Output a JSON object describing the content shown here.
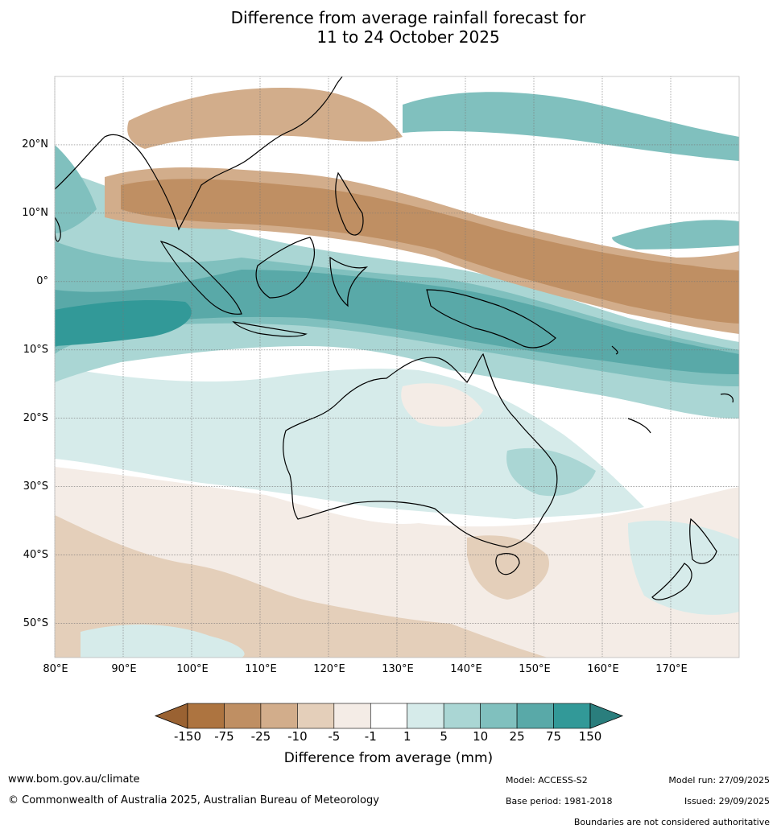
{
  "title": {
    "line1": "Difference from average rainfall forecast for",
    "line2": "11 to 24 October 2025"
  },
  "map": {
    "extent": {
      "lon_min": 80,
      "lon_max": 180,
      "lat_min": -55,
      "lat_max": 30
    },
    "lat_labels": [
      "20°N",
      "10°N",
      "0°",
      "10°S",
      "20°S",
      "30°S",
      "40°S",
      "50°S"
    ],
    "lat_values": [
      20,
      10,
      0,
      -10,
      -20,
      -30,
      -40,
      -50
    ],
    "lon_labels": [
      "80°E",
      "90°E",
      "100°E",
      "110°E",
      "120°E",
      "130°E",
      "140°E",
      "150°E",
      "160°E",
      "170°E"
    ],
    "lon_values": [
      80,
      90,
      100,
      110,
      120,
      130,
      140,
      150,
      160,
      170
    ]
  },
  "colorbar": {
    "title": "Difference from average (mm)",
    "ticks": [
      "-150",
      "-75",
      "-25",
      "-10",
      "-5",
      "-1",
      "1",
      "5",
      "10",
      "25",
      "75",
      "150"
    ],
    "colors": [
      "#9a6232",
      "#ad7440",
      "#bf8f63",
      "#d2ad8b",
      "#e4cfba",
      "#f4ece6",
      "#ffffff",
      "#d6ebea",
      "#aad6d4",
      "#80c0be",
      "#59a9a8",
      "#329998",
      "#2a7e7d"
    ]
  },
  "footer": {
    "website": "www.bom.gov.au/climate",
    "copyright": "© Commonwealth of Australia 2025, Australian Bureau of Meteorology",
    "model": "Model: ACCESS-S2",
    "base_period": "Base period: 1981-2018",
    "model_run": "Model run: 27/09/2025",
    "issued": "Issued: 29/09/2025",
    "disclaimer": "Boundaries are not considered authoritative"
  }
}
